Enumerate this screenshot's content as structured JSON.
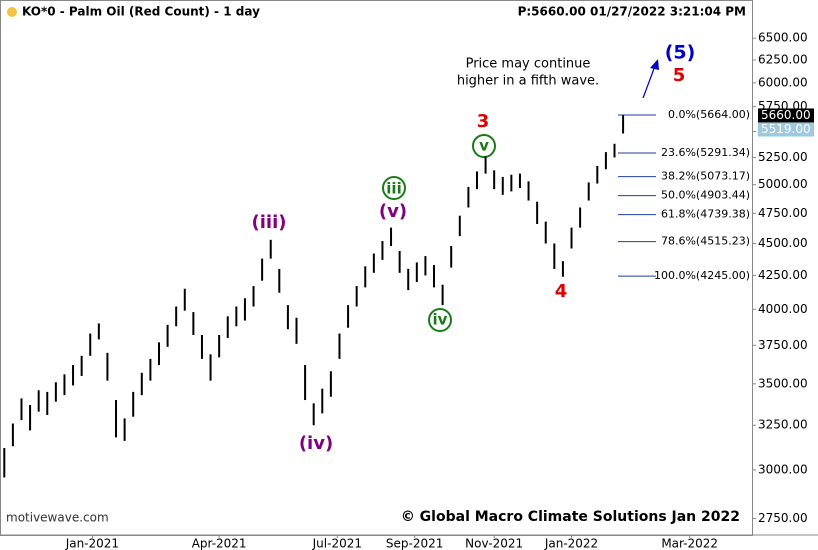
{
  "chart_data": {
    "type": "ohlc",
    "title": "KO*0 - Palm Oil (Red Count) - 1 day",
    "subtitle": "P:5660.00  01/27/2022 3:21:04 PM",
    "color": "#000000",
    "log_scale": true,
    "x": [
      2,
      6,
      10,
      14,
      18,
      22,
      26,
      30,
      34,
      38,
      42,
      46,
      50,
      54,
      58,
      62,
      66,
      70,
      74,
      78,
      82,
      86,
      90,
      94,
      98,
      102,
      106,
      110,
      114,
      118,
      122,
      126,
      130,
      134,
      138,
      142,
      146,
      150,
      154,
      158,
      162,
      166,
      170,
      174,
      178,
      182,
      186,
      190,
      194,
      198,
      202,
      206,
      210,
      214,
      218,
      222,
      226,
      230,
      234,
      238,
      242,
      246,
      250,
      254,
      258,
      262,
      266,
      270,
      274,
      278,
      282,
      286,
      290
    ],
    "high": [
      3120,
      3260,
      3410,
      3370,
      3460,
      3450,
      3510,
      3560,
      3620,
      3680,
      3830,
      3900,
      3700,
      3400,
      3290,
      3450,
      3570,
      3660,
      3770,
      3890,
      4020,
      4150,
      3980,
      3820,
      3690,
      3820,
      3950,
      4020,
      4080,
      4170,
      4380,
      4530,
      4300,
      4030,
      3940,
      3620,
      3380,
      3470,
      3580,
      3830,
      4030,
      4170,
      4320,
      4420,
      4520,
      4630,
      4440,
      4300,
      4350,
      4400,
      4330,
      4180,
      4480,
      4730,
      4980,
      5120,
      5260,
      5130,
      5070,
      5090,
      5100,
      5030,
      4850,
      4680,
      4500,
      4360,
      4630,
      4800,
      5020,
      5170,
      5300,
      5380,
      5664
    ],
    "low": [
      2960,
      3130,
      3280,
      3220,
      3330,
      3310,
      3390,
      3430,
      3490,
      3550,
      3680,
      3790,
      3520,
      3180,
      3160,
      3300,
      3430,
      3520,
      3620,
      3740,
      3880,
      3990,
      3820,
      3660,
      3520,
      3670,
      3800,
      3880,
      3920,
      4020,
      4210,
      4380,
      4120,
      3860,
      3760,
      3400,
      3250,
      3320,
      3420,
      3660,
      3870,
      4020,
      4160,
      4270,
      4370,
      4480,
      4270,
      4140,
      4200,
      4250,
      4160,
      4030,
      4310,
      4560,
      4800,
      4960,
      5100,
      4960,
      4910,
      4940,
      4970,
      4860,
      4660,
      4500,
      4300,
      4240,
      4460,
      4630,
      4860,
      5010,
      5140,
      5250,
      5480
    ],
    "xlim": [
      0,
      350
    ],
    "xticks": [
      {
        "value": 43,
        "label": "Jan-2021"
      },
      {
        "value": 102,
        "label": "Apr-2021"
      },
      {
        "value": 157,
        "label": "Jul-2021"
      },
      {
        "value": 193,
        "label": "Sep-2021"
      },
      {
        "value": 230,
        "label": "Nov-2021"
      },
      {
        "value": 266,
        "label": "Jan-2022"
      },
      {
        "value": 321,
        "label": "Mar-2022"
      }
    ],
    "ylim": [
      2670,
      6960
    ],
    "yticks": [
      {
        "value": 2750,
        "label": "2750.00"
      },
      {
        "value": 3000,
        "label": "3000.00"
      },
      {
        "value": 3250,
        "label": "3250.00"
      },
      {
        "value": 3500,
        "label": "3500.00"
      },
      {
        "value": 3750,
        "label": "3750.00"
      },
      {
        "value": 4000,
        "label": "4000.00"
      },
      {
        "value": 4250,
        "label": "4250.00"
      },
      {
        "value": 4500,
        "label": "4500.00"
      },
      {
        "value": 4750,
        "label": "4750.00"
      },
      {
        "value": 5000,
        "label": "5000.00"
      },
      {
        "value": 5250,
        "label": "5250.00"
      },
      {
        "value": 5500,
        "label": "5500.00"
      },
      {
        "value": 5750,
        "label": "5750.00"
      },
      {
        "value": 6000,
        "label": "6000.00"
      },
      {
        "value": 6250,
        "label": "6250.00"
      },
      {
        "value": 6500,
        "label": "6500.00"
      }
    ],
    "fib_levels": [
      {
        "value": 5664,
        "label": "0.0%(5664.00)"
      },
      {
        "value": 5291.34,
        "label": "23.6%(5291.34)"
      },
      {
        "value": 5073.17,
        "label": "38.2%(5073.17)"
      },
      {
        "value": 4903.44,
        "label": "50.0%(4903.44)"
      },
      {
        "value": 4739.38,
        "label": "61.8%(4739.38)"
      },
      {
        "value": 4515.23,
        "label": "78.6%(4515.23)"
      },
      {
        "value": 4245,
        "label": "100.0%(4245.00)"
      }
    ],
    "fib_color": "#1f3f99",
    "price_markers": [
      {
        "value": 5660,
        "label": "5660.00",
        "color": "#000000"
      },
      {
        "value": 5519,
        "label": "5519.00",
        "color": "#9ecae1"
      }
    ],
    "wave_labels": [
      "(iii)",
      "(iv)",
      "(v)",
      "iii",
      "iv",
      "v",
      "3",
      "4",
      "5",
      "(5)"
    ],
    "note": [
      "Price may continue",
      "higher in a fifth wave."
    ],
    "watermark": "motivewave.com",
    "copyright": "© Global Macro Climate Solutions Jan 2022"
  }
}
